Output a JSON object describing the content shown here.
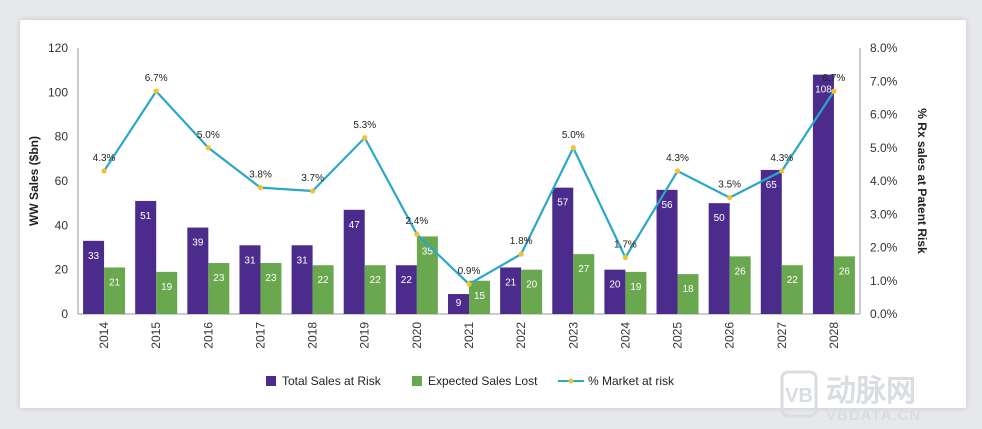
{
  "chart_data": {
    "type": "bar",
    "categories": [
      "2014",
      "2015",
      "2016",
      "2017",
      "2018",
      "2019",
      "2020",
      "2021",
      "2022",
      "2023",
      "2024",
      "2025",
      "2026",
      "2027",
      "2028"
    ],
    "series": [
      {
        "name": "Total Sales at Risk",
        "kind": "bar",
        "axis": "left",
        "color": "#4b2c8c",
        "values": [
          33,
          51,
          39,
          31,
          31,
          47,
          22,
          9,
          21,
          57,
          20,
          56,
          50,
          65,
          108
        ]
      },
      {
        "name": "Expected Sales Lost",
        "kind": "bar",
        "axis": "left",
        "color": "#6aa84f",
        "values": [
          21,
          19,
          23,
          23,
          22,
          22,
          35,
          15,
          20,
          27,
          19,
          18,
          26,
          22,
          26
        ]
      },
      {
        "name": "% Market at risk",
        "kind": "line",
        "axis": "right",
        "color": "#2aa8c7",
        "marker_color": "#f1c232",
        "values": [
          4.3,
          6.7,
          5.0,
          3.8,
          3.7,
          5.3,
          2.4,
          0.9,
          1.8,
          5.0,
          1.7,
          4.3,
          3.5,
          4.3,
          6.7
        ],
        "labels": [
          "4.3%",
          "6.7%",
          "5.0%",
          "3.8%",
          "3.7%",
          "5.3%",
          "2.4%",
          "0.9%",
          "1.8%",
          "5.0%",
          "1.7%",
          "4.3%",
          "3.5%",
          "4.3%",
          "6.7%"
        ]
      }
    ],
    "ylabel": "WW Sales ($bn)",
    "ylim": [
      0,
      120
    ],
    "yticks": [
      "0",
      "20",
      "40",
      "60",
      "80",
      "100",
      "120"
    ],
    "y2label": "% Rx sales at Patent Risk",
    "y2lim": [
      0,
      8
    ],
    "y2ticks": [
      "0.0%",
      "1.0%",
      "2.0%",
      "3.0%",
      "4.0%",
      "5.0%",
      "6.0%",
      "7.0%",
      "8.0%"
    ],
    "legend_position": "bottom-center",
    "grid": false
  },
  "watermark": {
    "text_cn": "动脉网",
    "text_en": "VBDATA.CN",
    "logo_text": "VB"
  }
}
